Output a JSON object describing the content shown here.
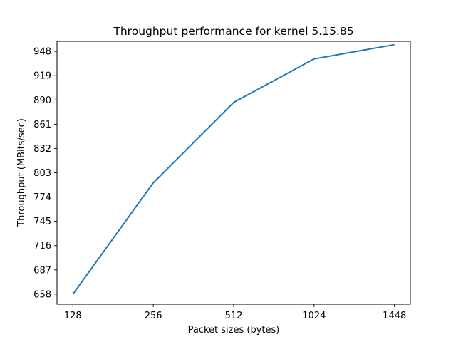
{
  "chart_data": {
    "type": "line",
    "title": "Throughput performance for kernel 5.15.85",
    "xlabel": "Packet sizes (bytes)",
    "ylabel": "Throughput (MBits/sec)",
    "categories": [
      "128",
      "256",
      "512",
      "1024",
      "1448"
    ],
    "yticks": [
      "658",
      "687",
      "716",
      "745",
      "774",
      "803",
      "832",
      "861",
      "890",
      "919",
      "948"
    ],
    "ylim": [
      646,
      960
    ],
    "grid": false,
    "series": [
      {
        "values": [
          658,
          791,
          887,
          939,
          956
        ],
        "color": "#1f77b4"
      }
    ]
  }
}
